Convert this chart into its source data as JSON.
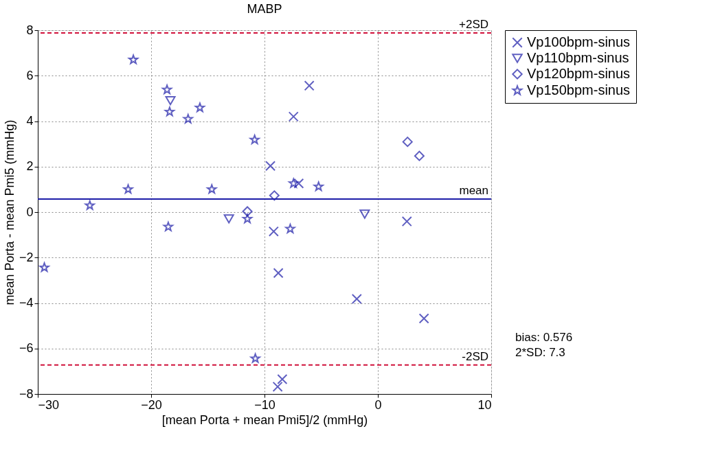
{
  "chart_data": {
    "type": "scatter",
    "title": "MABP",
    "xlabel": "[mean Porta + mean Pmi5]/2 (mmHg)",
    "ylabel": "mean Porta - mean Pmi5 (mmHg)",
    "xlim": [
      -30,
      10
    ],
    "xticks": [
      -30,
      -20,
      -10,
      0,
      10
    ],
    "ylim": [
      -8,
      8
    ],
    "yticks": [
      -8,
      -6,
      -4,
      -2,
      0,
      2,
      4,
      6,
      8
    ],
    "grid": true,
    "legend": "top right",
    "series": [
      {
        "name": "Vp100bpm-sinus",
        "color": "#1c1ca8",
        "marker": "cross",
        "x": [
          -6.05,
          -7.44,
          -9.48,
          -6.98,
          -9.19,
          -8.78,
          -1.86,
          2.56,
          4.07,
          -8.43,
          -8.84
        ],
        "values": [
          5.56,
          4.2,
          2.03,
          1.26,
          -0.85,
          -2.68,
          -3.82,
          -0.41,
          -4.68,
          -7.35,
          -7.68
        ]
      },
      {
        "name": "Vp110bpm-sinus",
        "color": "#1c1ca8",
        "marker": "triangle",
        "x": [
          -18.3,
          -13.14,
          -1.16
        ],
        "values": [
          4.9,
          -0.3,
          -0.09
        ]
      },
      {
        "name": "Vp120bpm-sinus",
        "color": "#1c1ca8",
        "marker": "diamond",
        "x": [
          2.62,
          3.66,
          -9.13,
          -11.51
        ],
        "values": [
          3.09,
          2.47,
          0.73,
          0.03
        ]
      },
      {
        "name": "Vp150bpm-sinus",
        "color": "#1c1ca8",
        "marker": "star",
        "x": [
          -21.57,
          -18.6,
          -18.37,
          -16.74,
          -15.7,
          -10.87,
          -22.03,
          -14.65,
          -25.41,
          -18.49,
          -11.51,
          -29.42,
          -10.81,
          -7.44,
          -5.23,
          -7.73
        ],
        "values": [
          6.7,
          5.38,
          4.41,
          4.09,
          4.59,
          3.18,
          1.0,
          1.0,
          0.29,
          -0.65,
          -0.3,
          -2.44,
          -6.44,
          1.26,
          1.12,
          -0.74
        ]
      }
    ],
    "ref_lines": [
      {
        "axis": "y",
        "value": 7.876,
        "label": "+2SD",
        "color": "#d0103a",
        "line_style": "dashed"
      },
      {
        "axis": "y",
        "value": 0.576,
        "label": "mean",
        "color": "#1c1ca8",
        "line_style": "solid"
      },
      {
        "axis": "y",
        "value": -6.724,
        "label": "-2SD",
        "color": "#d0103a",
        "line_style": "dashed"
      }
    ],
    "annotations": [
      "bias: 0.576\n2*SD: 7.3"
    ]
  }
}
